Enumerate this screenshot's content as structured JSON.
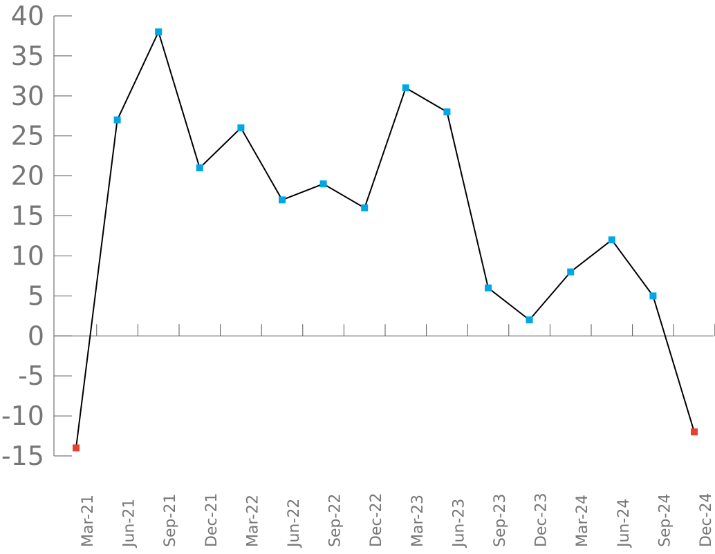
{
  "chart_data": {
    "type": "line",
    "title": "",
    "xlabel": "",
    "ylabel": "",
    "ylim": [
      -15,
      40
    ],
    "yticks": [
      40,
      35,
      30,
      25,
      20,
      15,
      10,
      5,
      0,
      -5,
      -10,
      -15
    ],
    "ytick_labels": [
      "40",
      "35",
      "30",
      "25",
      "20",
      "15",
      "10",
      "5",
      "0",
      "-5",
      "-10",
      "-15"
    ],
    "categories": [
      "Mar-21",
      "Jun-21",
      "Sep-21",
      "Dec-21",
      "Mar-22",
      "Jun-22",
      "Sep-22",
      "Dec-22",
      "Mar-23",
      "Jun-23",
      "Sep-23",
      "Dec-23",
      "Mar-24",
      "Jun-24",
      "Sep-24",
      "Dec-24"
    ],
    "series": [
      {
        "values": [
          -14,
          27,
          38,
          21,
          26,
          17,
          19,
          16,
          31,
          28,
          6,
          2,
          8,
          12,
          5,
          -12
        ],
        "line_color": "#000000",
        "marker_colors": [
          "#e8402c",
          "#00a6e6",
          "#00a6e6",
          "#00a6e6",
          "#00a6e6",
          "#00a6e6",
          "#00a6e6",
          "#00a6e6",
          "#00a6e6",
          "#00a6e6",
          "#00a6e6",
          "#00a6e6",
          "#00a6e6",
          "#00a6e6",
          "#00a6e6",
          "#e8402c"
        ]
      }
    ],
    "grid": false,
    "legend": "none",
    "colors": {
      "axis": "#555555",
      "tick_text": "#767676",
      "positive_marker": "#00a6e6",
      "negative_marker": "#e8402c"
    }
  }
}
